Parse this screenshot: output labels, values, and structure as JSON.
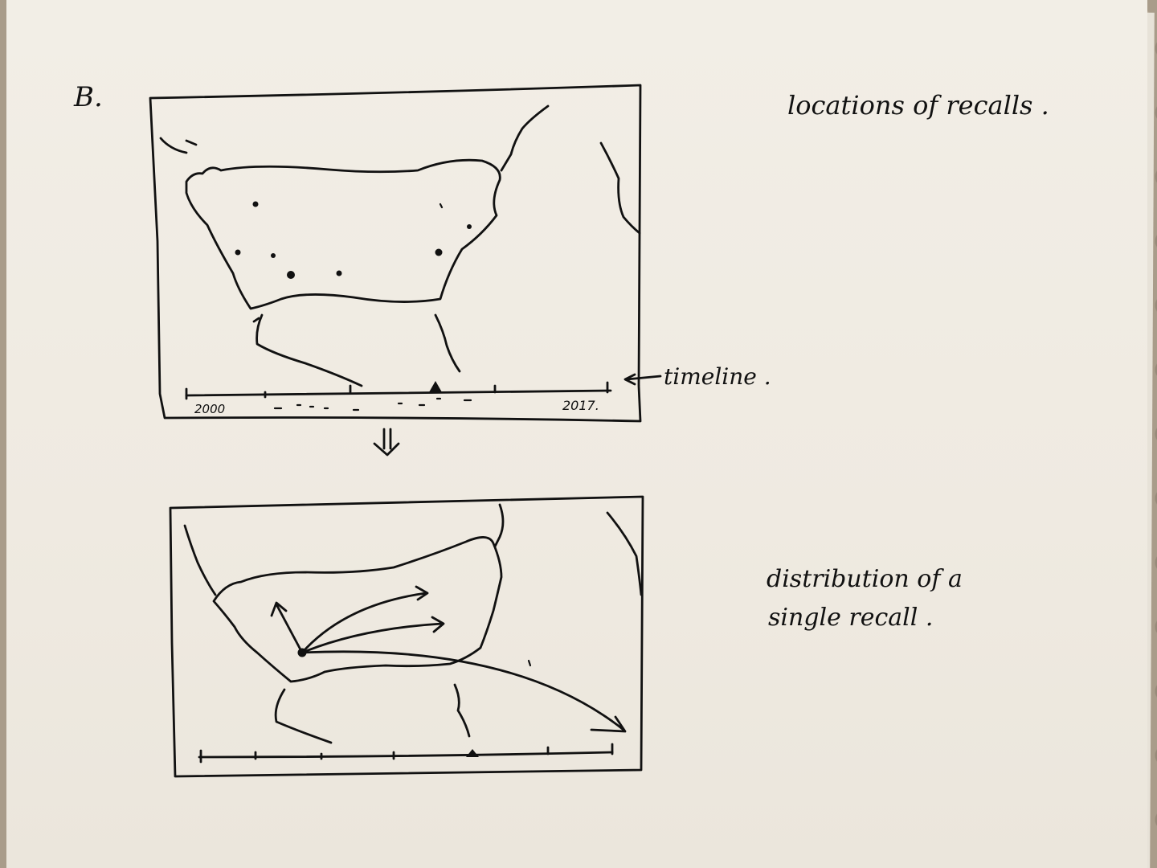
{
  "section_label": "B.",
  "top_panel": {
    "caption": "locations of recalls .",
    "timeline_label": "timeline .",
    "timeline_start": "2000",
    "timeline_end": "2017."
  },
  "bottom_panel": {
    "caption_line1": "distribution of a",
    "caption_line2": "single recall ."
  },
  "transition_arrow": "⇓",
  "colors": {
    "ink": "#111111",
    "paper": "#efeae1",
    "background": "#a99c8a"
  }
}
